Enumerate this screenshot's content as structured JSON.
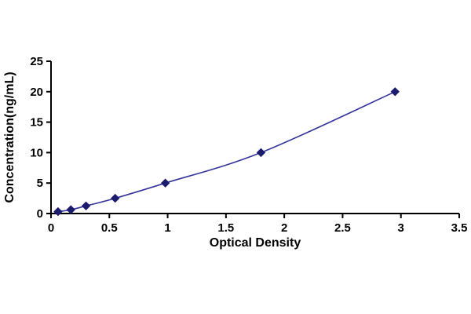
{
  "chart_data": {
    "type": "line",
    "title": "",
    "xlabel": "Optical Density",
    "ylabel": "Concentration(ng/mL)",
    "x": [
      0.06,
      0.17,
      0.3,
      0.55,
      0.98,
      1.8,
      2.95
    ],
    "y": [
      0.31,
      0.63,
      1.25,
      2.5,
      5,
      10,
      20
    ],
    "xlim": [
      0,
      3.5
    ],
    "ylim": [
      0,
      25
    ],
    "x_ticks": [
      0,
      0.5,
      1,
      1.5,
      2,
      2.5,
      3,
      3.5
    ],
    "x_tick_labels": [
      "0",
      "0.5",
      "1",
      "1.5",
      "2",
      "2.5",
      "3",
      "3.5"
    ],
    "y_ticks": [
      0,
      5,
      10,
      15,
      20,
      25
    ],
    "y_tick_labels": [
      "0",
      "5",
      "10",
      "15",
      "20",
      "25"
    ],
    "grid": false,
    "legend": "none",
    "line_color": "#33339b",
    "marker": "diamond",
    "marker_color": "#1c1c6e",
    "axis_color": "#000000"
  }
}
